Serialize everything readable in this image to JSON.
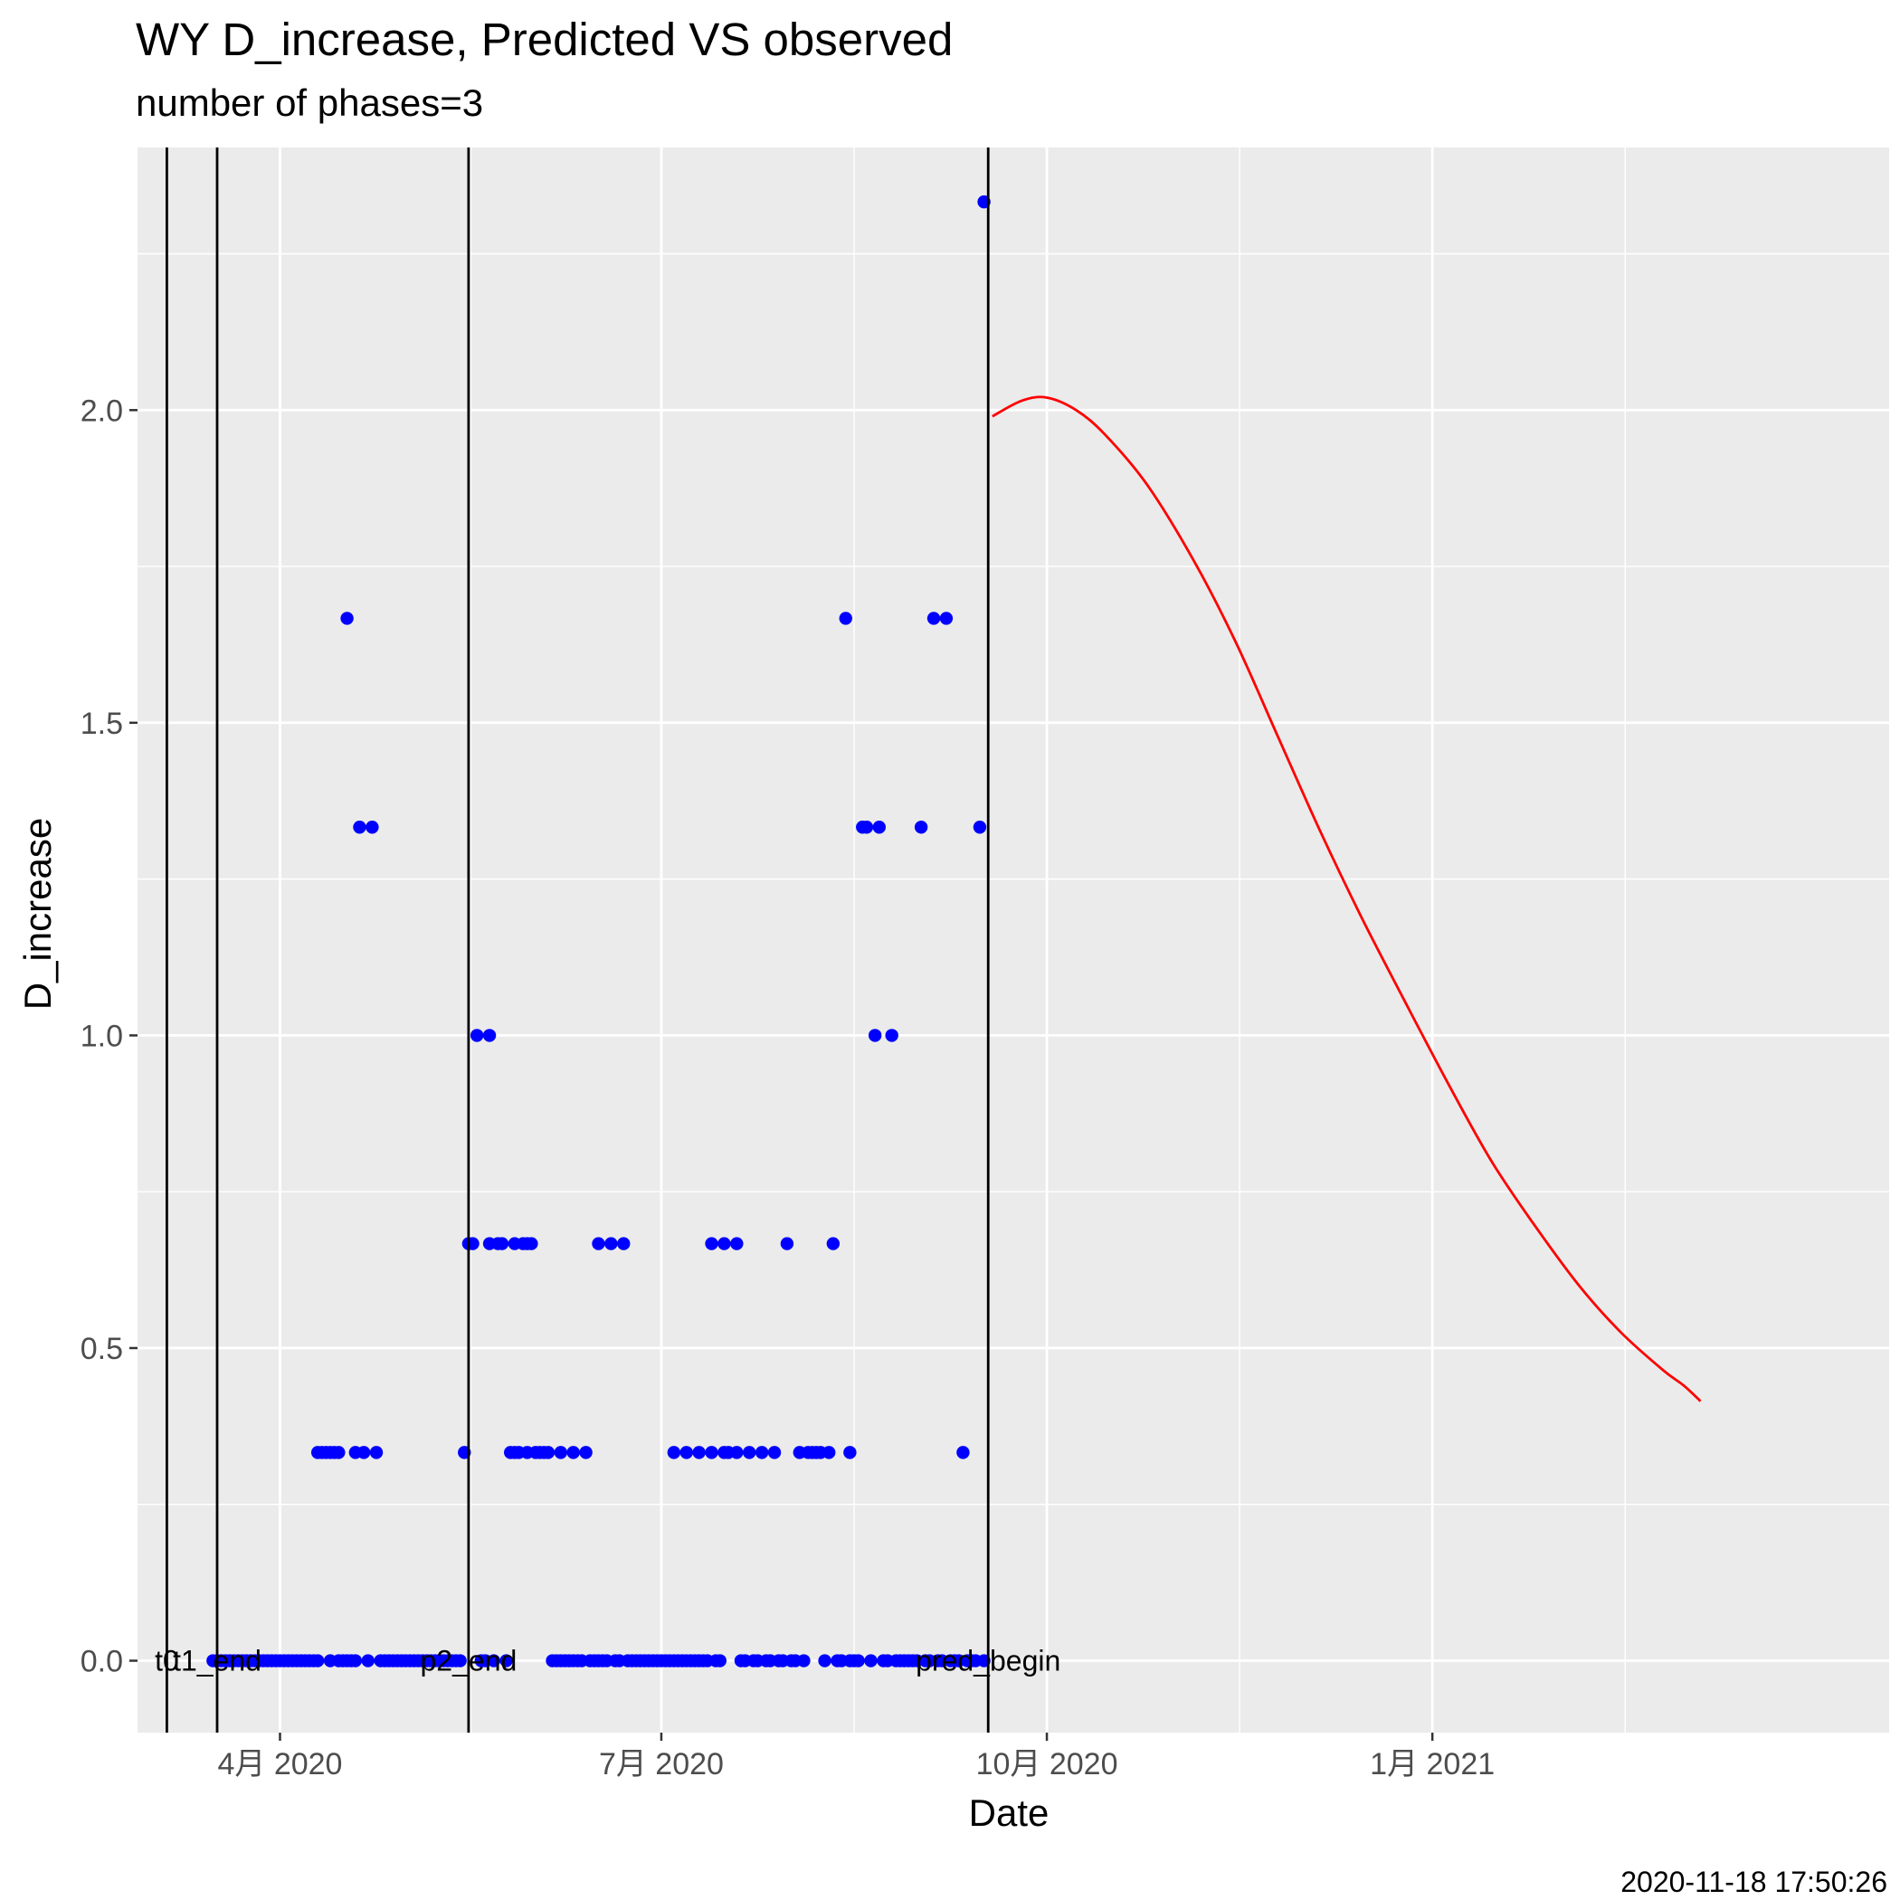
{
  "chart_data": {
    "type": "scatter",
    "title": "WY D_increase, Predicted VS observed",
    "subtitle": "number of phases=3",
    "xlabel": "Date",
    "ylabel": "D_increase",
    "caption": "2020-11-18 17:50:26",
    "x_range": [
      "2020-02-27",
      "2021-04-20"
    ],
    "ylim": [
      -0.115,
      2.42
    ],
    "grid": true,
    "x_ticks": [
      {
        "date": "2020-04-01",
        "label": "4月 2020"
      },
      {
        "date": "2020-07-01",
        "label": "7月 2020"
      },
      {
        "date": "2020-10-01",
        "label": "10月 2020"
      },
      {
        "date": "2021-01-01",
        "label": "1月 2021"
      }
    ],
    "y_ticks": [
      {
        "value": 0.0,
        "label": "0.0"
      },
      {
        "value": 0.5,
        "label": "0.5"
      },
      {
        "value": 1.0,
        "label": "1.0"
      },
      {
        "value": 1.5,
        "label": "1.5"
      },
      {
        "value": 2.0,
        "label": "2.0"
      }
    ],
    "vlines": [
      {
        "date": "2020-03-05",
        "label": "t0"
      },
      {
        "date": "2020-03-17",
        "label": "t1_end"
      },
      {
        "date": "2020-05-16",
        "label": "p2_end"
      },
      {
        "date": "2020-09-17",
        "label": "pred_begin"
      }
    ],
    "colors": {
      "observed": "#0000ff",
      "predicted": "#ff0000",
      "vline": "#000000",
      "panel": "#ebebeb",
      "grid": "#ffffff"
    },
    "series": [
      {
        "type": "scatter",
        "points": [
          [
            "2020-03-16",
            0
          ],
          [
            "2020-03-17",
            0
          ],
          [
            "2020-03-18",
            0
          ],
          [
            "2020-03-19",
            0
          ],
          [
            "2020-03-20",
            0
          ],
          [
            "2020-03-21",
            0
          ],
          [
            "2020-03-22",
            0
          ],
          [
            "2020-03-23",
            0
          ],
          [
            "2020-03-24",
            0
          ],
          [
            "2020-03-25",
            0
          ],
          [
            "2020-03-26",
            0
          ],
          [
            "2020-03-27",
            0
          ],
          [
            "2020-03-28",
            0
          ],
          [
            "2020-03-29",
            0
          ],
          [
            "2020-03-30",
            0
          ],
          [
            "2020-03-31",
            0
          ],
          [
            "2020-04-01",
            0
          ],
          [
            "2020-04-02",
            0
          ],
          [
            "2020-04-03",
            0
          ],
          [
            "2020-04-04",
            0
          ],
          [
            "2020-04-05",
            0
          ],
          [
            "2020-04-06",
            0
          ],
          [
            "2020-04-07",
            0
          ],
          [
            "2020-04-08",
            0
          ],
          [
            "2020-04-09",
            0
          ],
          [
            "2020-04-10",
            0
          ],
          [
            "2020-04-10",
            0.333
          ],
          [
            "2020-04-11",
            0.333
          ],
          [
            "2020-04-12",
            0.333
          ],
          [
            "2020-04-13",
            0.333
          ],
          [
            "2020-04-14",
            0.333
          ],
          [
            "2020-04-15",
            0.333
          ],
          [
            "2020-04-13",
            0
          ],
          [
            "2020-04-15",
            0
          ],
          [
            "2020-04-16",
            0
          ],
          [
            "2020-04-17",
            0
          ],
          [
            "2020-04-18",
            0
          ],
          [
            "2020-04-19",
            0
          ],
          [
            "2020-04-17",
            1.667
          ],
          [
            "2020-04-19",
            0.333
          ],
          [
            "2020-04-20",
            1.333
          ],
          [
            "2020-04-21",
            0.333
          ],
          [
            "2020-04-22",
            0
          ],
          [
            "2020-04-23",
            1.333
          ],
          [
            "2020-04-24",
            0.333
          ],
          [
            "2020-04-25",
            0
          ],
          [
            "2020-04-26",
            0
          ],
          [
            "2020-04-27",
            0
          ],
          [
            "2020-04-28",
            0
          ],
          [
            "2020-04-29",
            0
          ],
          [
            "2020-04-30",
            0
          ],
          [
            "2020-05-01",
            0
          ],
          [
            "2020-05-02",
            0
          ],
          [
            "2020-05-03",
            0
          ],
          [
            "2020-05-04",
            0
          ],
          [
            "2020-05-05",
            0
          ],
          [
            "2020-05-06",
            0
          ],
          [
            "2020-05-07",
            0
          ],
          [
            "2020-05-08",
            0
          ],
          [
            "2020-05-09",
            0
          ],
          [
            "2020-05-10",
            0
          ],
          [
            "2020-05-11",
            0
          ],
          [
            "2020-05-12",
            0
          ],
          [
            "2020-05-13",
            0
          ],
          [
            "2020-05-14",
            0
          ],
          [
            "2020-05-15",
            0.333
          ],
          [
            "2020-05-16",
            0.667
          ],
          [
            "2020-05-17",
            0.667
          ],
          [
            "2020-05-18",
            1.0
          ],
          [
            "2020-05-19",
            0
          ],
          [
            "2020-05-20",
            0
          ],
          [
            "2020-05-21",
            0.667
          ],
          [
            "2020-05-21",
            1.0
          ],
          [
            "2020-05-22",
            0
          ],
          [
            "2020-05-23",
            0.667
          ],
          [
            "2020-05-24",
            0.667
          ],
          [
            "2020-05-25",
            0
          ],
          [
            "2020-05-26",
            0.333
          ],
          [
            "2020-05-27",
            0.333
          ],
          [
            "2020-05-27",
            0.667
          ],
          [
            "2020-05-28",
            0.333
          ],
          [
            "2020-05-29",
            0.667
          ],
          [
            "2020-05-30",
            0.333
          ],
          [
            "2020-05-30",
            0.667
          ],
          [
            "2020-05-31",
            0.667
          ],
          [
            "2020-06-01",
            0.333
          ],
          [
            "2020-06-02",
            0.333
          ],
          [
            "2020-06-03",
            0.333
          ],
          [
            "2020-06-04",
            0.333
          ],
          [
            "2020-06-05",
            0
          ],
          [
            "2020-06-06",
            0
          ],
          [
            "2020-06-07",
            0
          ],
          [
            "2020-06-07",
            0.333
          ],
          [
            "2020-06-08",
            0
          ],
          [
            "2020-06-09",
            0
          ],
          [
            "2020-06-10",
            0
          ],
          [
            "2020-06-10",
            0.333
          ],
          [
            "2020-06-11",
            0
          ],
          [
            "2020-06-12",
            0
          ],
          [
            "2020-06-13",
            0.333
          ],
          [
            "2020-06-14",
            0
          ],
          [
            "2020-06-15",
            0
          ],
          [
            "2020-06-16",
            0
          ],
          [
            "2020-06-16",
            0.667
          ],
          [
            "2020-06-17",
            0
          ],
          [
            "2020-06-18",
            0
          ],
          [
            "2020-06-19",
            0.667
          ],
          [
            "2020-06-20",
            0
          ],
          [
            "2020-06-21",
            0
          ],
          [
            "2020-06-22",
            0.667
          ],
          [
            "2020-06-23",
            0
          ],
          [
            "2020-06-24",
            0
          ],
          [
            "2020-06-25",
            0
          ],
          [
            "2020-06-26",
            0
          ],
          [
            "2020-06-27",
            0
          ],
          [
            "2020-06-28",
            0
          ],
          [
            "2020-06-29",
            0
          ],
          [
            "2020-06-30",
            0
          ],
          [
            "2020-07-01",
            0
          ],
          [
            "2020-07-02",
            0
          ],
          [
            "2020-07-03",
            0
          ],
          [
            "2020-07-04",
            0
          ],
          [
            "2020-07-04",
            0.333
          ],
          [
            "2020-07-05",
            0
          ],
          [
            "2020-07-06",
            0
          ],
          [
            "2020-07-07",
            0
          ],
          [
            "2020-07-07",
            0.333
          ],
          [
            "2020-07-08",
            0
          ],
          [
            "2020-07-09",
            0
          ],
          [
            "2020-07-10",
            0
          ],
          [
            "2020-07-10",
            0.333
          ],
          [
            "2020-07-11",
            0
          ],
          [
            "2020-07-12",
            0
          ],
          [
            "2020-07-13",
            0.333
          ],
          [
            "2020-07-13",
            0.667
          ],
          [
            "2020-07-14",
            0
          ],
          [
            "2020-07-15",
            0
          ],
          [
            "2020-07-16",
            0.333
          ],
          [
            "2020-07-16",
            0.667
          ],
          [
            "2020-07-17",
            0.333
          ],
          [
            "2020-07-19",
            0.333
          ],
          [
            "2020-07-19",
            0.667
          ],
          [
            "2020-07-20",
            0
          ],
          [
            "2020-07-21",
            0
          ],
          [
            "2020-07-22",
            0.333
          ],
          [
            "2020-07-23",
            0
          ],
          [
            "2020-07-24",
            0
          ],
          [
            "2020-07-25",
            0.333
          ],
          [
            "2020-07-26",
            0
          ],
          [
            "2020-07-27",
            0
          ],
          [
            "2020-07-28",
            0.333
          ],
          [
            "2020-07-29",
            0
          ],
          [
            "2020-07-30",
            0
          ],
          [
            "2020-07-31",
            0.667
          ],
          [
            "2020-08-01",
            0
          ],
          [
            "2020-08-02",
            0
          ],
          [
            "2020-08-03",
            0.333
          ],
          [
            "2020-08-04",
            0
          ],
          [
            "2020-08-05",
            0.333
          ],
          [
            "2020-08-06",
            0.333
          ],
          [
            "2020-08-07",
            0.333
          ],
          [
            "2020-08-08",
            0.333
          ],
          [
            "2020-08-09",
            0
          ],
          [
            "2020-08-10",
            0.333
          ],
          [
            "2020-08-11",
            0.667
          ],
          [
            "2020-08-12",
            0
          ],
          [
            "2020-08-13",
            0
          ],
          [
            "2020-08-14",
            1.667
          ],
          [
            "2020-08-15",
            0
          ],
          [
            "2020-08-15",
            0.333
          ],
          [
            "2020-08-16",
            0
          ],
          [
            "2020-08-17",
            0
          ],
          [
            "2020-08-18",
            1.333
          ],
          [
            "2020-08-19",
            1.333
          ],
          [
            "2020-08-20",
            0
          ],
          [
            "2020-08-21",
            1.0
          ],
          [
            "2020-08-22",
            1.333
          ],
          [
            "2020-08-23",
            0
          ],
          [
            "2020-08-24",
            0
          ],
          [
            "2020-08-25",
            1.0
          ],
          [
            "2020-08-26",
            0
          ],
          [
            "2020-08-27",
            0
          ],
          [
            "2020-08-28",
            0
          ],
          [
            "2020-08-29",
            0
          ],
          [
            "2020-08-30",
            0
          ],
          [
            "2020-08-31",
            0
          ],
          [
            "2020-09-01",
            1.333
          ],
          [
            "2020-09-02",
            0
          ],
          [
            "2020-09-03",
            0
          ],
          [
            "2020-09-04",
            1.667
          ],
          [
            "2020-09-05",
            0
          ],
          [
            "2020-09-06",
            0
          ],
          [
            "2020-09-07",
            1.667
          ],
          [
            "2020-09-08",
            0
          ],
          [
            "2020-09-09",
            0
          ],
          [
            "2020-09-10",
            0
          ],
          [
            "2020-09-11",
            0.333
          ],
          [
            "2020-09-12",
            0
          ],
          [
            "2020-09-13",
            0
          ],
          [
            "2020-09-14",
            0
          ],
          [
            "2020-09-15",
            1.333
          ],
          [
            "2020-09-16",
            2.333
          ],
          [
            "2020-09-16",
            0
          ]
        ]
      },
      {
        "type": "line",
        "points": [
          [
            "2020-09-18",
            1.99
          ],
          [
            "2020-09-25",
            2.015
          ],
          [
            "2020-10-01",
            2.02
          ],
          [
            "2020-10-08",
            2.0
          ],
          [
            "2020-10-15",
            1.96
          ],
          [
            "2020-10-25",
            1.88
          ],
          [
            "2020-11-05",
            1.76
          ],
          [
            "2020-11-15",
            1.63
          ],
          [
            "2020-11-25",
            1.48
          ],
          [
            "2020-12-05",
            1.33
          ],
          [
            "2020-12-15",
            1.19
          ],
          [
            "2020-12-25",
            1.06
          ],
          [
            "2021-01-05",
            0.92
          ],
          [
            "2021-01-15",
            0.8
          ],
          [
            "2021-01-25",
            0.7
          ],
          [
            "2021-02-05",
            0.6
          ],
          [
            "2021-02-15",
            0.525
          ],
          [
            "2021-02-25",
            0.465
          ],
          [
            "2021-03-02",
            0.44
          ],
          [
            "2021-03-06",
            0.415
          ]
        ]
      }
    ]
  }
}
